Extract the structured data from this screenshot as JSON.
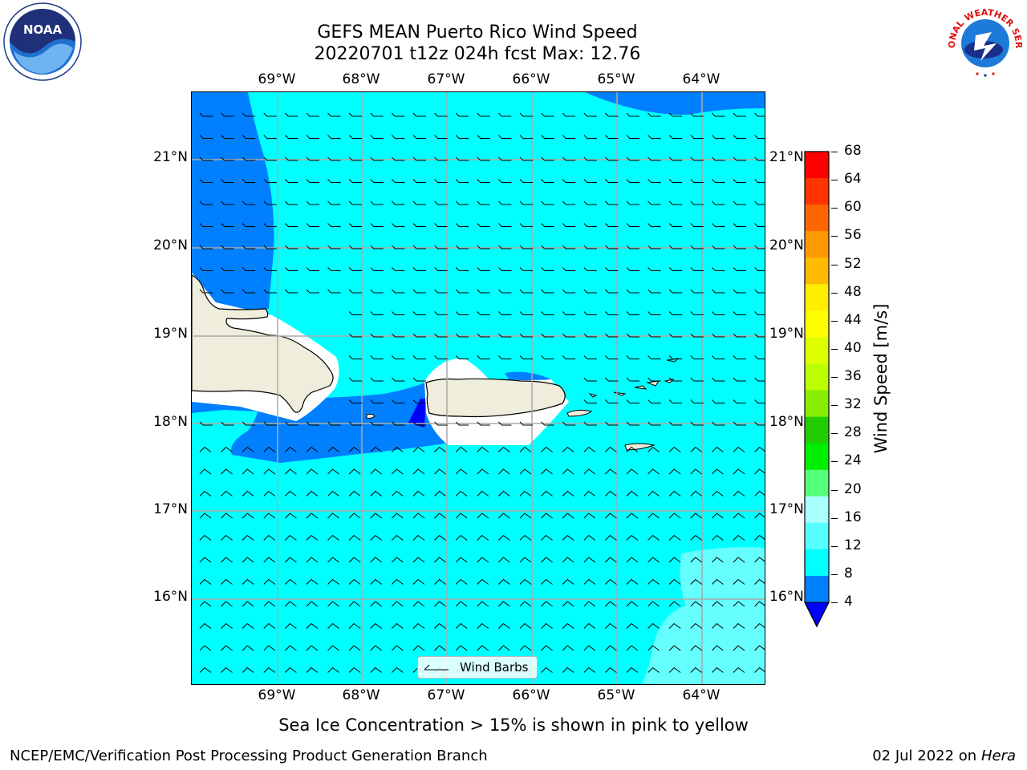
{
  "header": {
    "title_line1": "GEFS MEAN Puerto Rico Wind Speed",
    "title_line2": "20220701 t12z 024h fcst   Max: 12.76"
  },
  "logos": {
    "left": "noaa-logo",
    "right": "nws-logo",
    "left_text": "NOAA",
    "right_text": "NATIONAL WEATHER SERVICE"
  },
  "map": {
    "lon_labels": [
      "69°W",
      "68°W",
      "67°W",
      "66°W",
      "65°W",
      "64°W"
    ],
    "lat_labels": [
      "21°N",
      "20°N",
      "19°N",
      "18°N",
      "17°N",
      "16°N"
    ],
    "colors": {
      "ocean_fill": "#00ffff",
      "weak_wind": "#0080ff",
      "very_weak": "#0000ff",
      "light_cyan": "#66ffff",
      "land": "#efeedc"
    },
    "legend_label": "Wind Barbs"
  },
  "colorbar": {
    "label": "Wind Speed [m/s]",
    "ticks": [
      "68",
      "64",
      "60",
      "56",
      "52",
      "48",
      "44",
      "40",
      "36",
      "32",
      "28",
      "24",
      "20",
      "16",
      "12",
      "8",
      "4"
    ],
    "colors": [
      "#ff0000",
      "#ff3300",
      "#ff6600",
      "#ff9900",
      "#ffbb00",
      "#ffee00",
      "#ffff00",
      "#ddff00",
      "#bbff00",
      "#88ee00",
      "#22cc00",
      "#00ee00",
      "#55ff77",
      "#aaffff",
      "#55ffff",
      "#00ffff",
      "#0080ff"
    ],
    "under_color": "#0000ff"
  },
  "bottom": {
    "note": "Sea Ice Concentration > 15% is shown in pink to yellow",
    "credit": "NCEP/EMC/Verification Post Processing Product Generation Branch",
    "date_prefix": "02 Jul 2022 on ",
    "host": "Hera"
  }
}
